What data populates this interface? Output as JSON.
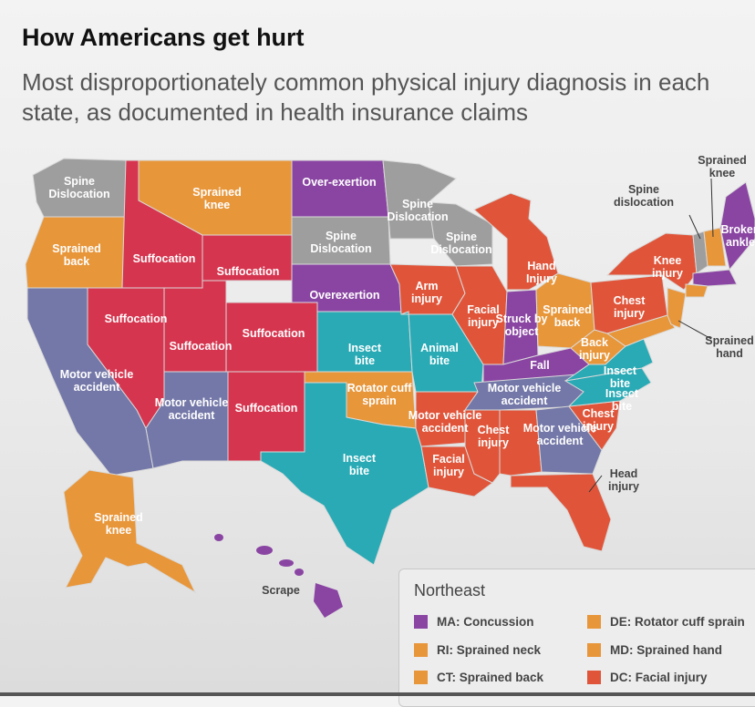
{
  "title": "How Americans get hurt",
  "subtitle": "Most disproportionately common physical injury diagnosis in each state, as documented in health insurance claims",
  "colors": {
    "spine_dislocation": "#9e9e9e",
    "sprain": "#e8963a",
    "suffocation": "#d6354f",
    "overexertion": "#8a45a3",
    "motor_vehicle": "#7478a8",
    "insect_bite": "#29aab5",
    "injury_red_orange": "#e0553a",
    "scrape": "#7b3a8e"
  },
  "map": {
    "washington": "Spine Dislocation",
    "oregon": "Sprained back",
    "california": "Motor vehicle accident",
    "nevada": "Suffocation",
    "idaho": "Suffocation",
    "montana": "Sprained knee",
    "wyoming": "Suffocation",
    "utah": "Suffocation",
    "colorado": "Suffocation",
    "arizona": "Motor vehicle accident",
    "new_mexico": "Suffocation",
    "north_dakota": "Over-exertion",
    "south_dakota": "Spine Dislocation",
    "nebraska": "Overexertion",
    "kansas": "Insect bite",
    "oklahoma": "Rotator cuff sprain",
    "texas": "Insect bite",
    "minnesota": "Spine Dislocation",
    "iowa": "Arm injury",
    "missouri": "Animal bite",
    "arkansas": "Motor vehicle accident",
    "louisiana": "Facial injury",
    "wisconsin": "Spine Dislocation",
    "illinois": "Facial injury",
    "michigan": "Hand Injury",
    "indiana": "Struck by object",
    "ohio": "Sprained back",
    "kentucky": "Fall",
    "tennessee": "Motor vehicle accident",
    "mississippi": "Chest injury",
    "alabama": "Chest injury",
    "georgia": "Motor vehicle accident",
    "florida": "Head injury",
    "south_carolina": "Chest injury",
    "north_carolina": "Insect bite",
    "virginia": "Insect bite",
    "west_virginia": "Back injury",
    "pennsylvania": "Chest injury",
    "new_york": "Knee injury",
    "vermont": "Spine dislocation",
    "new_hampshire": "Sprained knee",
    "maine": "Broken ankle",
    "new_jersey": "Sprained hand",
    "alaska": "Sprained knee",
    "hawaii": "Scrape"
  },
  "legend": {
    "title": "Northeast",
    "items": [
      {
        "code": "MA",
        "label": "MA: Concussion",
        "color": "#8a45a3"
      },
      {
        "code": "DE",
        "label": "DE: Rotator cuff sprain",
        "color": "#e8963a"
      },
      {
        "code": "RI",
        "label": "RI: Sprained neck",
        "color": "#e8963a"
      },
      {
        "code": "MD",
        "label": "MD: Sprained hand",
        "color": "#e8963a"
      },
      {
        "code": "CT",
        "label": "CT: Sprained back",
        "color": "#e8963a"
      },
      {
        "code": "DC",
        "label": "DC: Facial injury",
        "color": "#e0553a"
      }
    ]
  }
}
